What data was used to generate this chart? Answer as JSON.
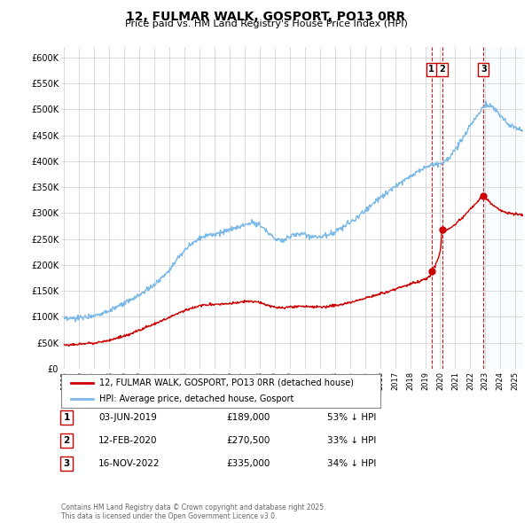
{
  "title": "12, FULMAR WALK, GOSPORT, PO13 0RR",
  "subtitle": "Price paid vs. HM Land Registry's House Price Index (HPI)",
  "ylim": [
    0,
    620000
  ],
  "yticks": [
    0,
    50000,
    100000,
    150000,
    200000,
    250000,
    300000,
    350000,
    400000,
    450000,
    500000,
    550000,
    600000
  ],
  "ytick_labels": [
    "£0",
    "£50K",
    "£100K",
    "£150K",
    "£200K",
    "£250K",
    "£300K",
    "£350K",
    "£400K",
    "£450K",
    "£500K",
    "£550K",
    "£600K"
  ],
  "xlim_start": 1994.8,
  "xlim_end": 2025.5,
  "hpi_color": "#7ab8e8",
  "price_color": "#cc0000",
  "vline_color": "#cc0000",
  "shade_color": "#ddeeff",
  "transactions": [
    {
      "label": "1",
      "date_str": "03-JUN-2019",
      "price": 189000,
      "pct": "53%",
      "direction": "↓",
      "x": 2019.42
    },
    {
      "label": "2",
      "date_str": "12-FEB-2020",
      "price": 270500,
      "pct": "33%",
      "direction": "↓",
      "x": 2020.12
    },
    {
      "label": "3",
      "date_str": "16-NOV-2022",
      "price": 335000,
      "pct": "34%",
      "direction": "↓",
      "x": 2022.88
    }
  ],
  "legend_line1": "12, FULMAR WALK, GOSPORT, PO13 0RR (detached house)",
  "legend_line2": "HPI: Average price, detached house, Gosport",
  "footnote": "Contains HM Land Registry data © Crown copyright and database right 2025.\nThis data is licensed under the Open Government Licence v3.0.",
  "background_color": "#ffffff",
  "grid_color": "#cccccc"
}
